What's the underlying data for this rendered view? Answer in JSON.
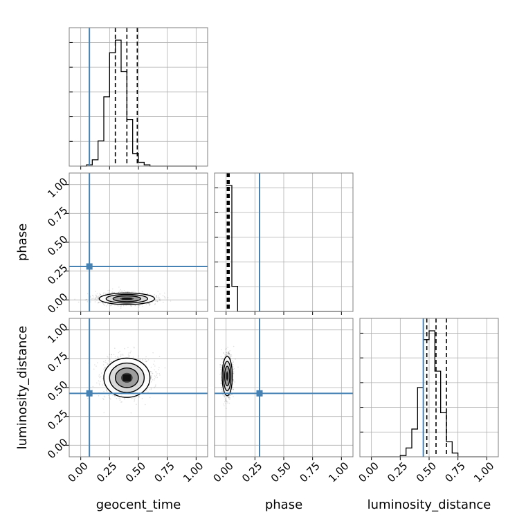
{
  "chart_data": {
    "type": "corner",
    "parameters": [
      "geocent_time",
      "phase",
      "luminosity_distance"
    ],
    "axis_labels": {
      "x": [
        "geocent_time",
        "phase",
        "luminosity_distance"
      ],
      "y": [
        "",
        "phase",
        "luminosity_distance"
      ]
    },
    "tick_labels": [
      "0.00",
      "0.25",
      "0.50",
      "0.75",
      "1.00"
    ],
    "ticks": [
      0,
      0.25,
      0.5,
      0.75,
      1.0
    ],
    "range": [
      -0.1,
      1.1
    ],
    "grid": true,
    "injection_color": "#4682b4",
    "injection_values": {
      "geocent_time": 0.075,
      "phase": 0.29,
      "luminosity_distance": 0.45
    },
    "quantiles": {
      "geocent_time": [
        0.3,
        0.4,
        0.49
      ],
      "phase": [
        0.01,
        0.018,
        0.027
      ],
      "luminosity_distance": [
        0.48,
        0.56,
        0.65
      ]
    },
    "histograms": {
      "geocent_time": {
        "edges": [
          0.0,
          0.05,
          0.1,
          0.15,
          0.2,
          0.25,
          0.3,
          0.35,
          0.4,
          0.45,
          0.5,
          0.55,
          0.6,
          0.65,
          0.7,
          0.75,
          0.8,
          0.85,
          0.9,
          0.95,
          1.0
        ],
        "counts": [
          0,
          0.01,
          0.05,
          0.2,
          0.55,
          0.9,
          1.0,
          0.75,
          0.37,
          0.1,
          0.03,
          0.01,
          0,
          0,
          0,
          0,
          0,
          0,
          0,
          0
        ]
      },
      "phase": {
        "edges": [
          0.0,
          0.05,
          0.1,
          0.15,
          0.2,
          0.25,
          0.3,
          0.35,
          0.4,
          0.45,
          0.5,
          0.55,
          0.6,
          0.65,
          0.7,
          0.75,
          0.8,
          0.85,
          0.9,
          0.95,
          1.0
        ],
        "counts": [
          1.0,
          0.2,
          0,
          0,
          0,
          0,
          0,
          0,
          0,
          0,
          0,
          0,
          0,
          0,
          0,
          0,
          0,
          0,
          0,
          0
        ]
      },
      "luminosity_distance": {
        "edges": [
          0.0,
          0.05,
          0.1,
          0.15,
          0.2,
          0.25,
          0.3,
          0.35,
          0.4,
          0.45,
          0.5,
          0.55,
          0.6,
          0.65,
          0.7,
          0.75,
          0.8,
          0.85,
          0.9,
          0.95,
          1.0
        ],
        "counts": [
          0,
          0,
          0,
          0,
          0,
          0.01,
          0.07,
          0.22,
          0.55,
          0.93,
          1.0,
          0.68,
          0.35,
          0.12,
          0.03,
          0,
          0,
          0,
          0,
          0
        ]
      }
    },
    "posterior_2d": {
      "phase_vs_geocent_time": {
        "center": [
          0.4,
          0.01
        ],
        "spread": [
          0.12,
          0.025
        ],
        "contours": [
          0.5,
          1.0,
          1.5,
          2.0
        ]
      },
      "luminosity_distance_vs_geocent_time": {
        "center": [
          0.4,
          0.585
        ],
        "spread": [
          0.1,
          0.085
        ],
        "contours": [
          0.5,
          1.0,
          1.5,
          2.0
        ]
      },
      "luminosity_distance_vs_phase": {
        "center": [
          0.01,
          0.6
        ],
        "spread": [
          0.022,
          0.085
        ],
        "contours": [
          0.5,
          1.0,
          1.5,
          2.0
        ]
      }
    }
  }
}
